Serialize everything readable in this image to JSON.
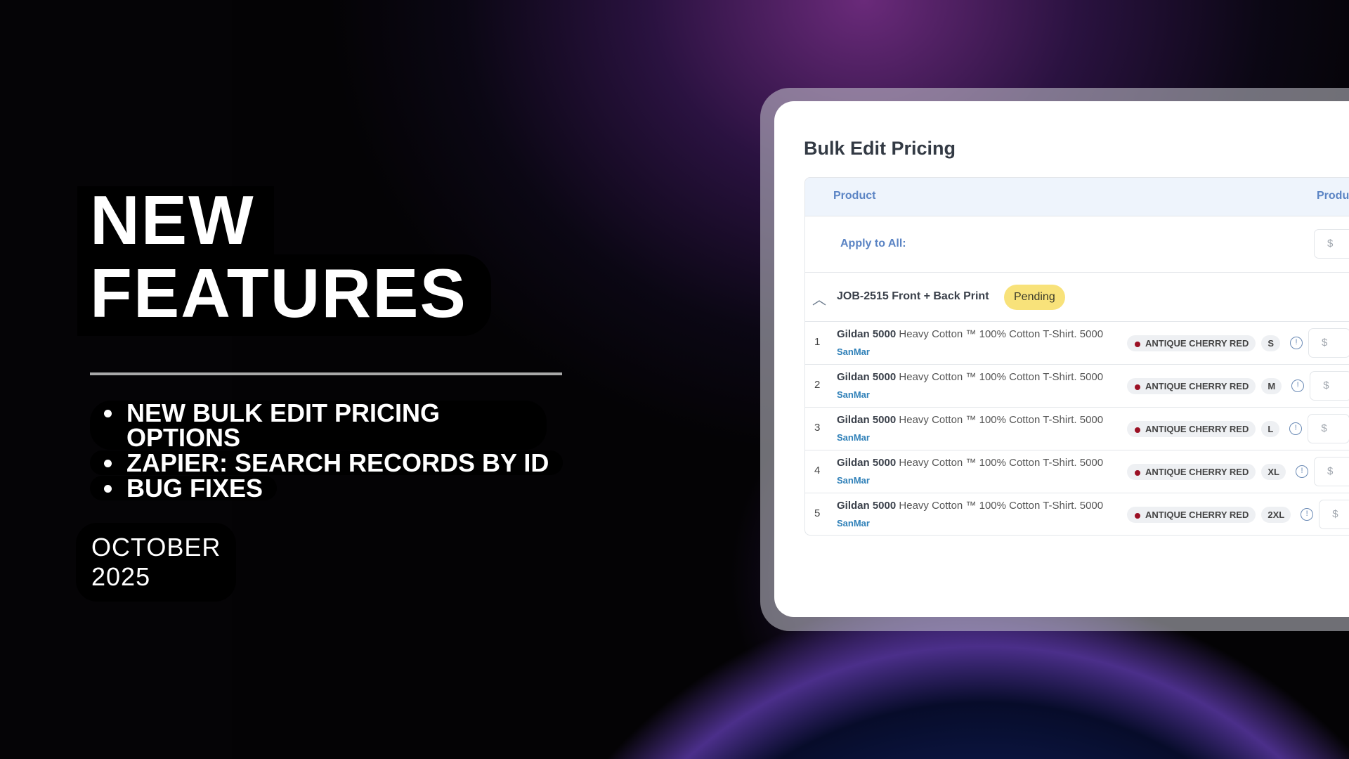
{
  "hero": {
    "title_line1": "NEW",
    "title_line2": "FEATURES",
    "bullets": [
      "NEW BULK EDIT PRICING OPTIONS",
      "ZAPIER: SEARCH RECORDS BY ID",
      "BUG FIXES"
    ],
    "date": "OCTOBER 2025"
  },
  "panel": {
    "title": "Bulk Edit Pricing",
    "columns": [
      "Product",
      "Produc"
    ],
    "apply_label": "Apply to All:",
    "currency": "$",
    "job": {
      "name": "JOB-2515 Front + Back Print",
      "status": "Pending",
      "status_color": "#f8e27a",
      "icon": "chevron-up-icon"
    },
    "rows": [
      {
        "index": "1",
        "brand": "Gildan 5000",
        "desc": "Heavy Cotton ™ 100% Cotton T-Shirt. 5000",
        "vendor": "SanMar",
        "color": "ANTIQUE CHERRY RED",
        "size": "S"
      },
      {
        "index": "2",
        "brand": "Gildan 5000",
        "desc": "Heavy Cotton ™ 100% Cotton T-Shirt. 5000",
        "vendor": "SanMar",
        "color": "ANTIQUE CHERRY RED",
        "size": "M"
      },
      {
        "index": "3",
        "brand": "Gildan 5000",
        "desc": "Heavy Cotton ™ 100% Cotton T-Shirt. 5000",
        "vendor": "SanMar",
        "color": "ANTIQUE CHERRY RED",
        "size": "L"
      },
      {
        "index": "4",
        "brand": "Gildan 5000",
        "desc": "Heavy Cotton ™ 100% Cotton T-Shirt. 5000",
        "vendor": "SanMar",
        "color": "ANTIQUE CHERRY RED",
        "size": "XL"
      },
      {
        "index": "5",
        "brand": "Gildan 5000",
        "desc": "Heavy Cotton ™ 100% Cotton T-Shirt. 5000",
        "vendor": "SanMar",
        "color": "ANTIQUE CHERRY RED",
        "size": "2XL"
      }
    ],
    "swatch_color": "#9b1024"
  }
}
